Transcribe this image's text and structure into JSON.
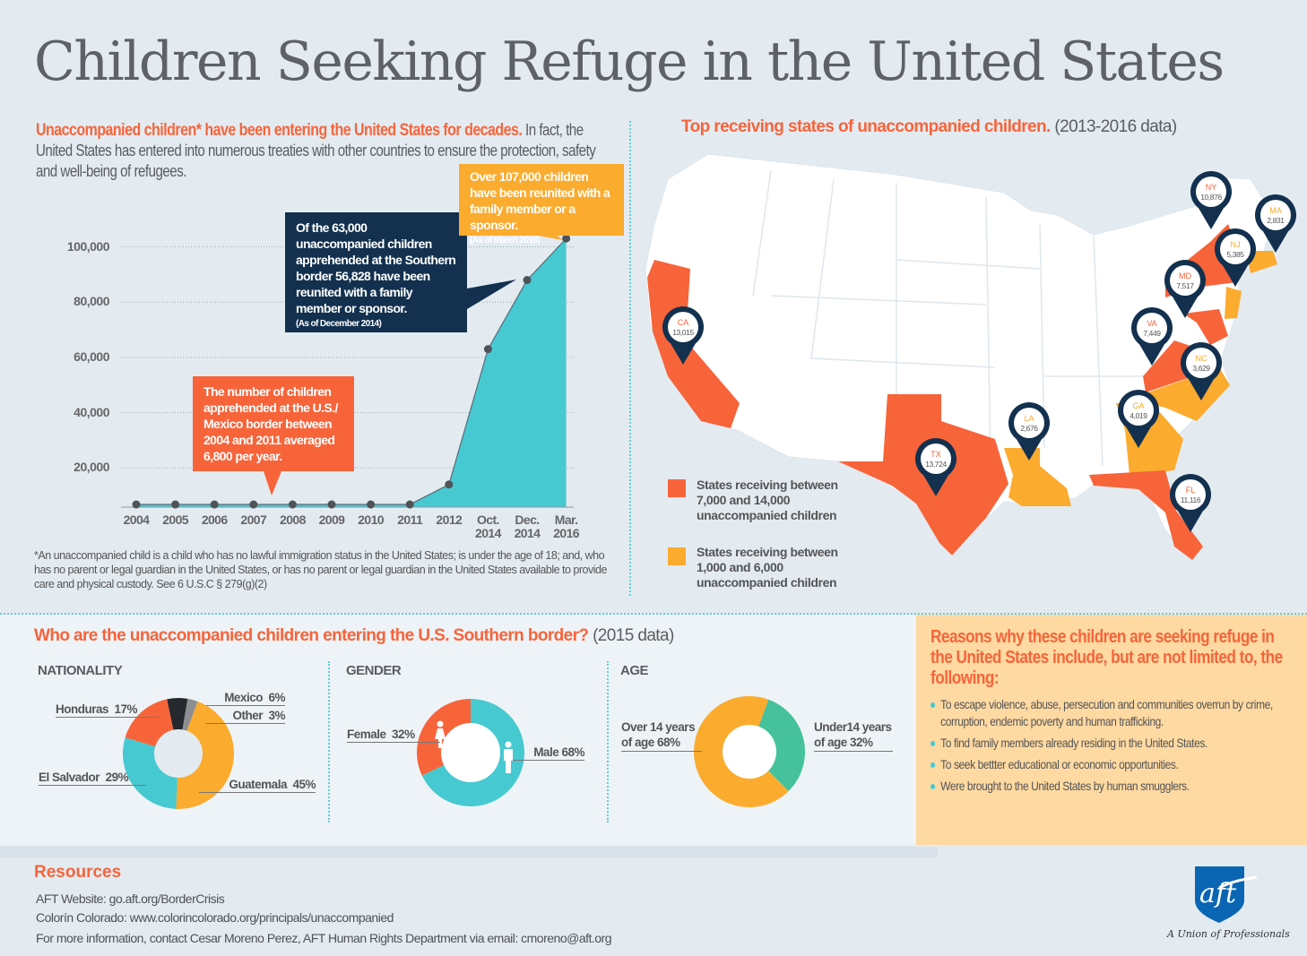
{
  "title": "Children Seeking Refuge in the United States",
  "intro": {
    "highlight": "Unaccompanied children* have been entering the United States for decades.",
    "text": " In fact, the United States has entered into numerous treaties with other countries to ensure the protection, safety and well-being of refugees."
  },
  "callouts": {
    "orange": "The number of children apprehended at the U.S./ Mexico border between 2004 and 2011 averaged 6,800 per year.",
    "navy": "Of the 63,000 unaccompanied children apprehended at the Southern border 56,828 have been reunited with a family member or sponsor.",
    "navy_note": "(As of December 2014)",
    "yellow": "Over 107,000 children have been reunited with a family member or a sponsor.",
    "yellow_note": "(As of March 2016)"
  },
  "footnote": "*An unaccompanied child is a child who has no lawful immigration status in the United States; is under the age of 18; and, who has no parent or legal guardian in the United States, or has no parent or legal guardian in the United States available to provide care and physical custody.  See 6 U.S.C § 279(g)(2)",
  "map": {
    "heading": "Top receiving states of unaccompanied children.",
    "heading_note": " (2013-2016 data)",
    "legend": [
      {
        "label": "States receiving between 7,000 and 14,000 unaccompanied children",
        "color": "#f7643a"
      },
      {
        "label": "States receiving between 1,000 and 6,000 unaccompanied children",
        "color": "#fbab2e"
      }
    ],
    "states": [
      {
        "abbr": "NY",
        "value": "10,876",
        "tier": 0
      },
      {
        "abbr": "MA",
        "value": "2,831",
        "tier": 1
      },
      {
        "abbr": "NJ",
        "value": "5,385",
        "tier": 1
      },
      {
        "abbr": "MD",
        "value": "7,517",
        "tier": 0
      },
      {
        "abbr": "VA",
        "value": "7,449",
        "tier": 0
      },
      {
        "abbr": "NC",
        "value": "3,629",
        "tier": 1
      },
      {
        "abbr": "GA",
        "value": "4,019",
        "tier": 1
      },
      {
        "abbr": "LA",
        "value": "2,676",
        "tier": 1
      },
      {
        "abbr": "TX",
        "value": "13,724",
        "tier": 0
      },
      {
        "abbr": "CA",
        "value": "13,015",
        "tier": 0
      },
      {
        "abbr": "FL",
        "value": "11,116",
        "tier": 0
      }
    ]
  },
  "demographics": {
    "heading": "Who are the unaccompanied children entering the U.S. Southern border?",
    "heading_note": " (2015 data)",
    "nationality_label": "NATIONALITY",
    "gender_label": "GENDER",
    "age_label": "AGE"
  },
  "reasons": {
    "heading": "Reasons why these children are seeking refuge in the United States include, but are not limited to, the following:",
    "items": [
      "To escape violence, abuse, persecution and communities overrun by crime, corruption, endemic poverty and human trafficking.",
      "To find family members already residing in the United States.",
      "To seek bettter educational or economic opportunities.",
      "Were brought to the United States by human smugglers."
    ]
  },
  "resources": {
    "heading": "Resources",
    "lines": [
      "AFT Website: go.aft.org/BorderCrisis",
      "Colorín Colorado: www.colorincolorado.org/principals/unaccompanied",
      "For more information, contact Cesar Moreno Perez, AFT Human Rights Department via email: cmoreno@aft.org"
    ]
  },
  "logo": {
    "text": "aft",
    "tagline": "A Union of Professionals",
    "color": "#0a66b2"
  },
  "colors": {
    "orange": "#f7643a",
    "teal": "#47c9d1",
    "navy": "#13314f",
    "yellow": "#fbab2e",
    "green": "#45c19b",
    "black": "#25282d",
    "grey": "#8c8e91"
  },
  "chart_data": [
    {
      "type": "area",
      "categories": [
        "2004",
        "2005",
        "2006",
        "2007",
        "2008",
        "2009",
        "2010",
        "2011",
        "2012",
        "Oct. 2014",
        "Dec. 2014",
        "Mar. 2016"
      ],
      "values": [
        6800,
        6800,
        6800,
        6800,
        6800,
        6800,
        6800,
        6800,
        14000,
        63000,
        88000,
        103000
      ],
      "yticks": [
        "20,000",
        "40,000",
        "60,000",
        "80,000",
        "100,000"
      ],
      "ylim": [
        0,
        100000
      ],
      "grid": true
    },
    {
      "type": "pie",
      "title": "NATIONALITY",
      "slices": [
        {
          "label": "Mexico",
          "value": 6,
          "color": "#25282d"
        },
        {
          "label": "Other",
          "value": 3,
          "color": "#8c8e91"
        },
        {
          "label": "Guatemala",
          "value": 45,
          "color": "#fbab2e"
        },
        {
          "label": "El Salvador",
          "value": 29,
          "color": "#47c9d1"
        },
        {
          "label": "Honduras",
          "value": 17,
          "color": "#f7643a"
        }
      ]
    },
    {
      "type": "pie",
      "title": "GENDER",
      "slices": [
        {
          "label": "Male",
          "value": 68,
          "color": "#47c9d1"
        },
        {
          "label": "Female",
          "value": 32,
          "color": "#f7643a"
        }
      ]
    },
    {
      "type": "pie",
      "title": "AGE",
      "slices": [
        {
          "label": "Under14 years of age",
          "value": 32,
          "color": "#45c19b"
        },
        {
          "label": "Over 14 years of age",
          "value": 68,
          "color": "#fbab2e"
        }
      ]
    }
  ]
}
